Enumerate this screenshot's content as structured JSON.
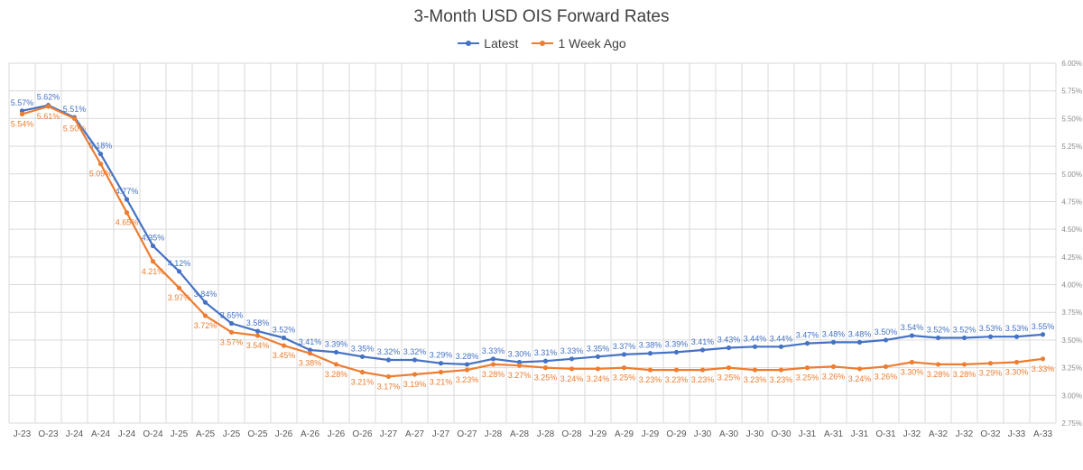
{
  "chart_data": {
    "type": "line",
    "title": "3-Month USD OIS Forward Rates",
    "x": [
      "J-23",
      "O-23",
      "J-24",
      "A-24",
      "J-24",
      "O-24",
      "J-25",
      "A-25",
      "J-25",
      "O-25",
      "J-26",
      "A-26",
      "J-26",
      "O-26",
      "J-27",
      "A-27",
      "J-27",
      "O-27",
      "J-28",
      "A-28",
      "J-28",
      "O-28",
      "J-29",
      "A-29",
      "J-29",
      "O-29",
      "J-30",
      "A-30",
      "J-30",
      "O-30",
      "J-31",
      "A-31",
      "J-31",
      "O-31",
      "J-32",
      "A-32",
      "J-32",
      "O-32",
      "J-33",
      "A-33"
    ],
    "yticks": [
      "2.75%",
      "3.00%",
      "3.25%",
      "3.50%",
      "3.75%",
      "4.00%",
      "4.25%",
      "4.50%",
      "4.75%",
      "5.00%",
      "5.25%",
      "5.50%",
      "5.75%",
      "6.00%"
    ],
    "ylim": [
      2.75,
      6.0
    ],
    "legend_position": "top",
    "grid": true,
    "series": [
      {
        "name": "Latest",
        "color": "#4472C4",
        "label_position": "above",
        "values": [
          5.57,
          5.62,
          5.51,
          5.18,
          4.77,
          4.35,
          4.12,
          3.84,
          3.65,
          3.58,
          3.52,
          3.41,
          3.39,
          3.35,
          3.32,
          3.32,
          3.29,
          3.28,
          3.33,
          3.3,
          3.31,
          3.33,
          3.35,
          3.37,
          3.38,
          3.39,
          3.41,
          3.43,
          3.44,
          3.44,
          3.47,
          3.48,
          3.48,
          3.5,
          3.54,
          3.52,
          3.52,
          3.53,
          3.53,
          3.55
        ],
        "labels": [
          "5.57%",
          "5.62%",
          "5.51%",
          "5.18%",
          "4.77%",
          "4.35%",
          "4.12%",
          "3.84%",
          "3.65%",
          "3.58%",
          "3.52%",
          "3.41%",
          "3.39%",
          "3.35%",
          "3.32%",
          "3.32%",
          "3.29%",
          "3.28%",
          "3.33%",
          "3.30%",
          "3.31%",
          "3.33%",
          "3.35%",
          "3.37%",
          "3.38%",
          "3.39%",
          "3.41%",
          "3.43%",
          "3.44%",
          "3.44%",
          "3.47%",
          "3.48%",
          "3.48%",
          "3.50%",
          "3.54%",
          "3.52%",
          "3.52%",
          "3.53%",
          "3.53%",
          "3.55%"
        ]
      },
      {
        "name": "1 Week Ago",
        "color": "#ED7D31",
        "label_position": "below",
        "values": [
          5.54,
          5.61,
          5.5,
          5.09,
          4.65,
          4.21,
          3.97,
          3.72,
          3.57,
          3.54,
          3.45,
          3.38,
          3.28,
          3.21,
          3.17,
          3.19,
          3.21,
          3.23,
          3.28,
          3.27,
          3.25,
          3.24,
          3.24,
          3.25,
          3.23,
          3.23,
          3.23,
          3.25,
          3.23,
          3.23,
          3.25,
          3.26,
          3.24,
          3.26,
          3.3,
          3.28,
          3.28,
          3.29,
          3.3,
          3.33
        ],
        "labels": [
          "5.54%",
          "5.61%",
          "5.50%",
          "5.09%",
          "4.65%",
          "4.21%",
          "3.97%",
          "3.72%",
          "3.57%",
          "3.54%",
          "3.45%",
          "3.38%",
          "3.28%",
          "3.21%",
          "3.17%",
          "3.19%",
          "3.21%",
          "3.23%",
          "3.28%",
          "3.27%",
          "3.25%",
          "3.24%",
          "3.24%",
          "3.25%",
          "3.23%",
          "3.23%",
          "3.23%",
          "3.25%",
          "3.23%",
          "3.23%",
          "3.25%",
          "3.26%",
          "3.24%",
          "3.26%",
          "3.30%",
          "3.28%",
          "3.28%",
          "3.29%",
          "3.30%",
          "3.33%"
        ]
      }
    ]
  }
}
